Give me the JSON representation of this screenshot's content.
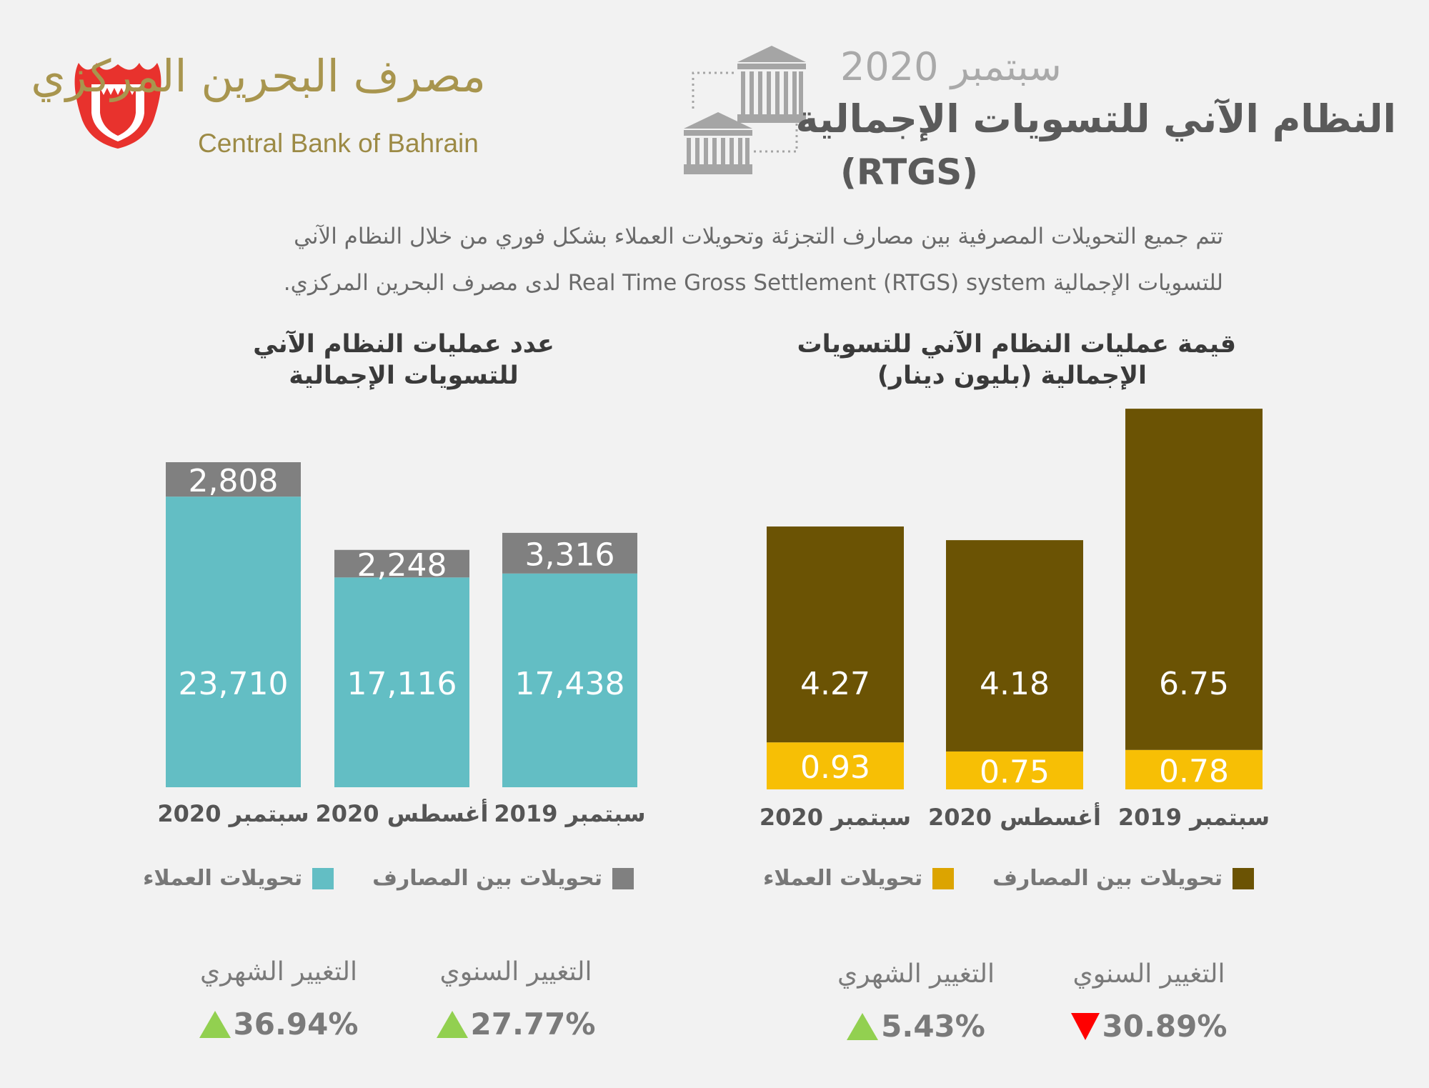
{
  "header": {
    "logo_ar": "مصرف البحرين المركزي",
    "logo_en": "Central Bank of Bahrain",
    "date": "سبتمبر 2020",
    "title": "النظام الآني للتسويات الإجمالية",
    "title_abbr": "(RTGS)"
  },
  "description": {
    "line1": "تتم جميع التحويلات المصرفية بين مصارف التجزئة وتحويلات العملاء بشكل فوري من خلال النظام الآني",
    "line2": "للتسويات الإجمالية Real Time Gross Settlement (RTGS) system لدى مصرف البحرين المركزي."
  },
  "colors": {
    "teal": "#63bec4",
    "gray": "#808080",
    "brown": "#6b5304",
    "yellow": "#f7bf05",
    "up": "#92d050",
    "down": "#ff0000"
  },
  "chart_data": [
    {
      "type": "bar",
      "stacked": true,
      "title_line1": "عدد عمليات النظام الآني",
      "title_line2": "للتسويات الإجمالية",
      "categories": [
        "سبتمبر 2020",
        "أغسطس 2020",
        "سبتمبر 2019"
      ],
      "series": [
        {
          "name": "تحويلات العملاء",
          "values": [
            23710,
            17116,
            17438
          ],
          "labels": [
            "23,710",
            "17,116",
            "17,438"
          ]
        },
        {
          "name": "تحويلات بين المصارف",
          "values": [
            2808,
            2248,
            3316
          ],
          "labels": [
            "2,808",
            "2,248",
            "3,316"
          ]
        }
      ],
      "legend": "bottom"
    },
    {
      "type": "bar",
      "stacked": true,
      "title_line1": "قيمة عمليات النظام الآني للتسويات",
      "title_line2": "الإجمالية (بليون دينار)",
      "categories": [
        "سبتمبر 2020",
        "أغسطس 2020",
        "سبتمبر 2019"
      ],
      "series": [
        {
          "name": "تحويلات العملاء",
          "values": [
            0.93,
            0.75,
            0.78
          ],
          "labels": [
            "0.93",
            "0.75",
            "0.78"
          ]
        },
        {
          "name": "تحويلات بين المصارف",
          "values": [
            4.27,
            4.18,
            6.75
          ],
          "labels": [
            "4.27",
            "4.18",
            "6.75"
          ]
        }
      ],
      "legend": "bottom"
    }
  ],
  "changes": {
    "left": {
      "monthly": {
        "label": "التغيير الشهري",
        "value": "36.94%",
        "direction": "up"
      },
      "annual": {
        "label": "التغيير السنوي",
        "value": "27.77%",
        "direction": "up"
      }
    },
    "right": {
      "monthly": {
        "label": "التغيير الشهري",
        "value": "5.43%",
        "direction": "up"
      },
      "annual": {
        "label": "التغيير السنوي",
        "value": "30.89%",
        "direction": "down"
      }
    }
  }
}
